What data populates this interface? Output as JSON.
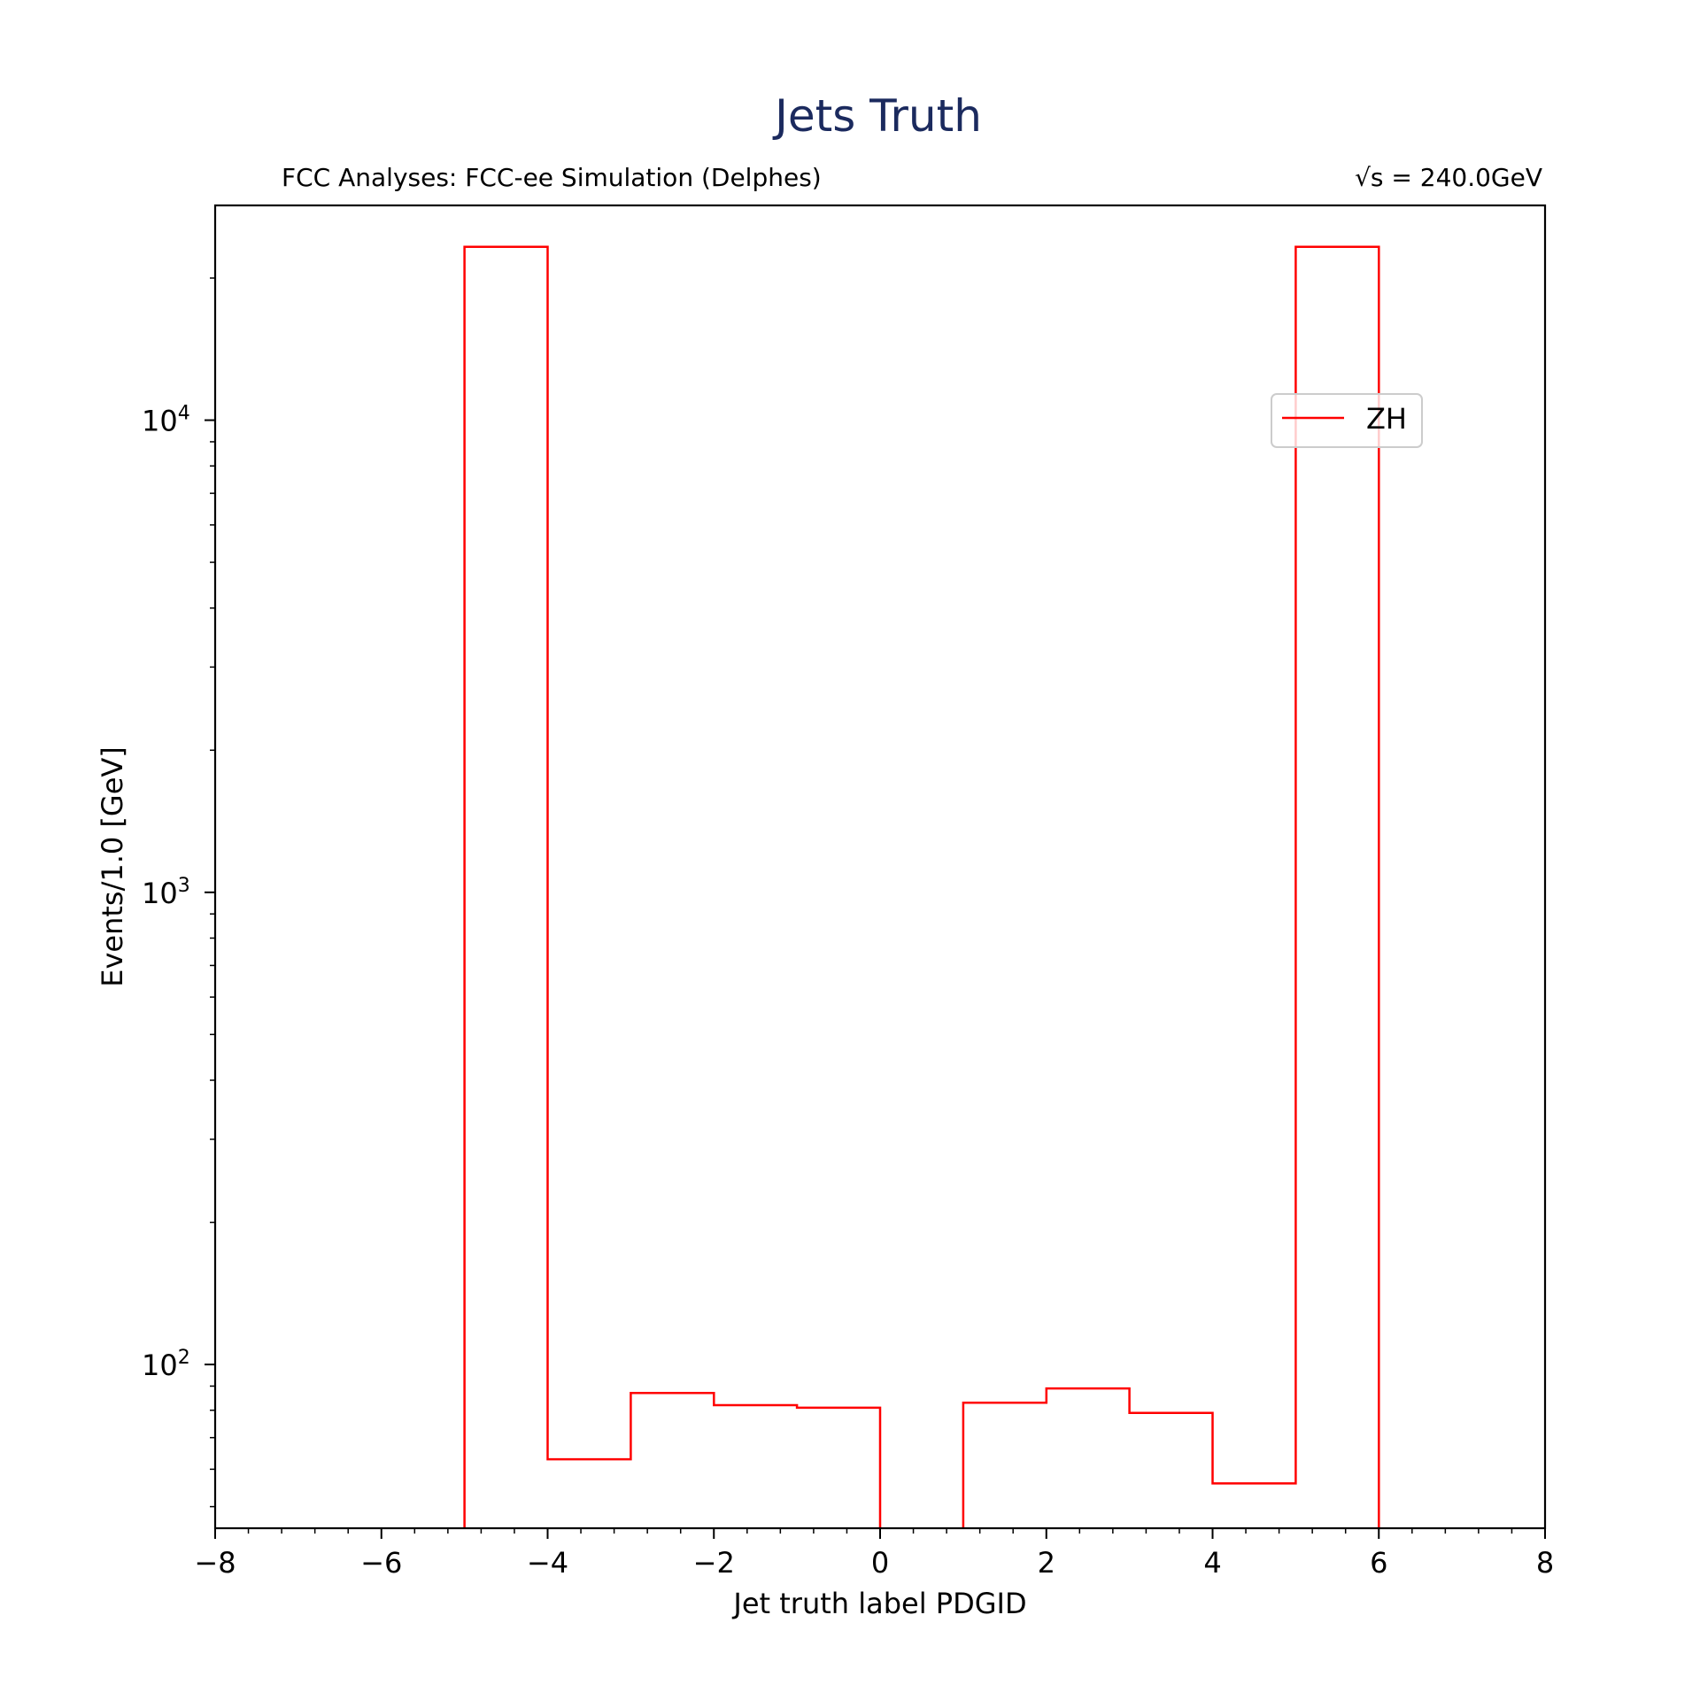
{
  "chart_data": {
    "type": "histogram-step",
    "title": "Jets Truth",
    "subtitle_left": "FCC Analyses: FCC-ee Simulation (Delphes)",
    "subtitle_right": "√s = 240.0GeV",
    "xlabel": "Jet truth label PDGID",
    "ylabel": "Events/1.0 [GeV]",
    "xlim": [
      -8,
      8
    ],
    "ylim": [
      45,
      28500
    ],
    "yscale": "log",
    "x_ticks": [
      -8,
      -6,
      -4,
      -2,
      0,
      2,
      4,
      6,
      8
    ],
    "x_tick_labels": [
      "−8",
      "−6",
      "−4",
      "−2",
      "0",
      "2",
      "4",
      "6",
      "8"
    ],
    "y_major_ticks": [
      100,
      1000,
      10000
    ],
    "y_tick_labels": [
      {
        "base": "10",
        "exp": "2"
      },
      {
        "base": "10",
        "exp": "3"
      },
      {
        "base": "10",
        "exp": "4"
      }
    ],
    "grid": false,
    "legend_position": "upper-right",
    "series": [
      {
        "name": "ZH",
        "color": "#ff0000",
        "bin_edges": [
          -5,
          -4,
          -3,
          -2,
          -1,
          0,
          1,
          2,
          3,
          4,
          5,
          6
        ],
        "values": [
          23300,
          63,
          87,
          82,
          81,
          0,
          83,
          89,
          79,
          56,
          23300
        ]
      }
    ]
  }
}
